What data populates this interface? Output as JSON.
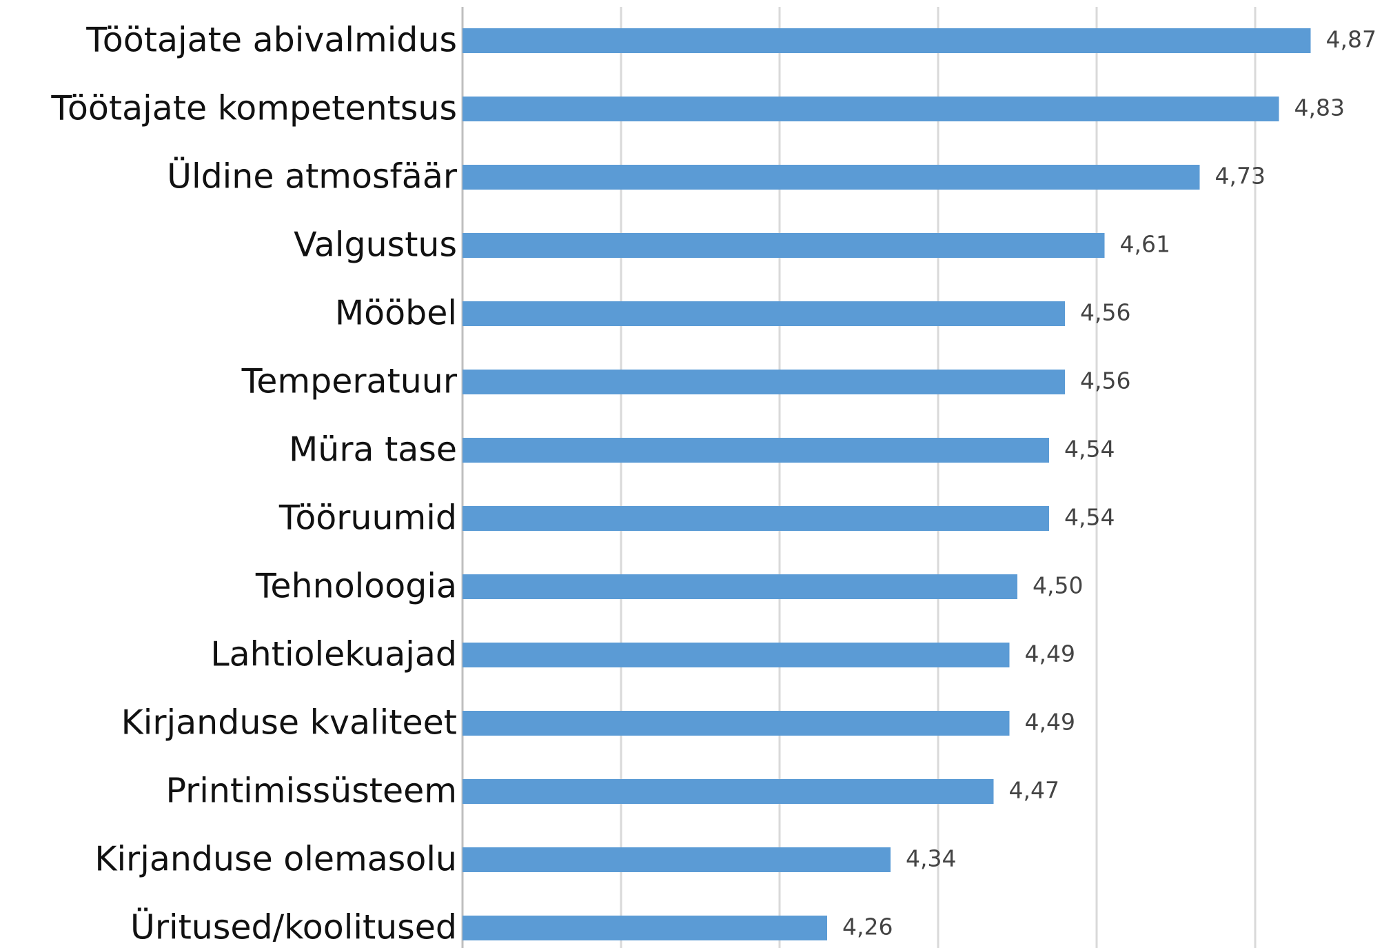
{
  "chart_data": {
    "type": "barh",
    "categories": [
      "Töötajate abivalmidus",
      "Töötajate kompetentsus",
      "Üldine atmosfäär",
      "Valgustus",
      "Mööbel",
      "Temperatuur",
      "Müra tase",
      "Tööruumid",
      "Tehnoloogia",
      "Lahtiolekuajad",
      "Kirjanduse kvaliteet",
      "Printimissüsteem",
      "Kirjanduse olemasolu",
      "Üritused/koolitused"
    ],
    "values": [
      4.87,
      4.83,
      4.73,
      4.61,
      4.56,
      4.56,
      4.54,
      4.54,
      4.5,
      4.49,
      4.49,
      4.47,
      4.34,
      4.26
    ],
    "value_labels": [
      "4,87",
      "4,83",
      "4,73",
      "4,61",
      "4,56",
      "4,56",
      "4,54",
      "4,54",
      "4,50",
      "4,49",
      "4,49",
      "4,47",
      "4,34",
      "4,26"
    ],
    "color": "#5b9bd5",
    "xlim": [
      3.8,
      4.96
    ],
    "xticks": [
      4.0,
      4.2,
      4.4,
      4.6,
      4.8
    ],
    "grid": true
  }
}
